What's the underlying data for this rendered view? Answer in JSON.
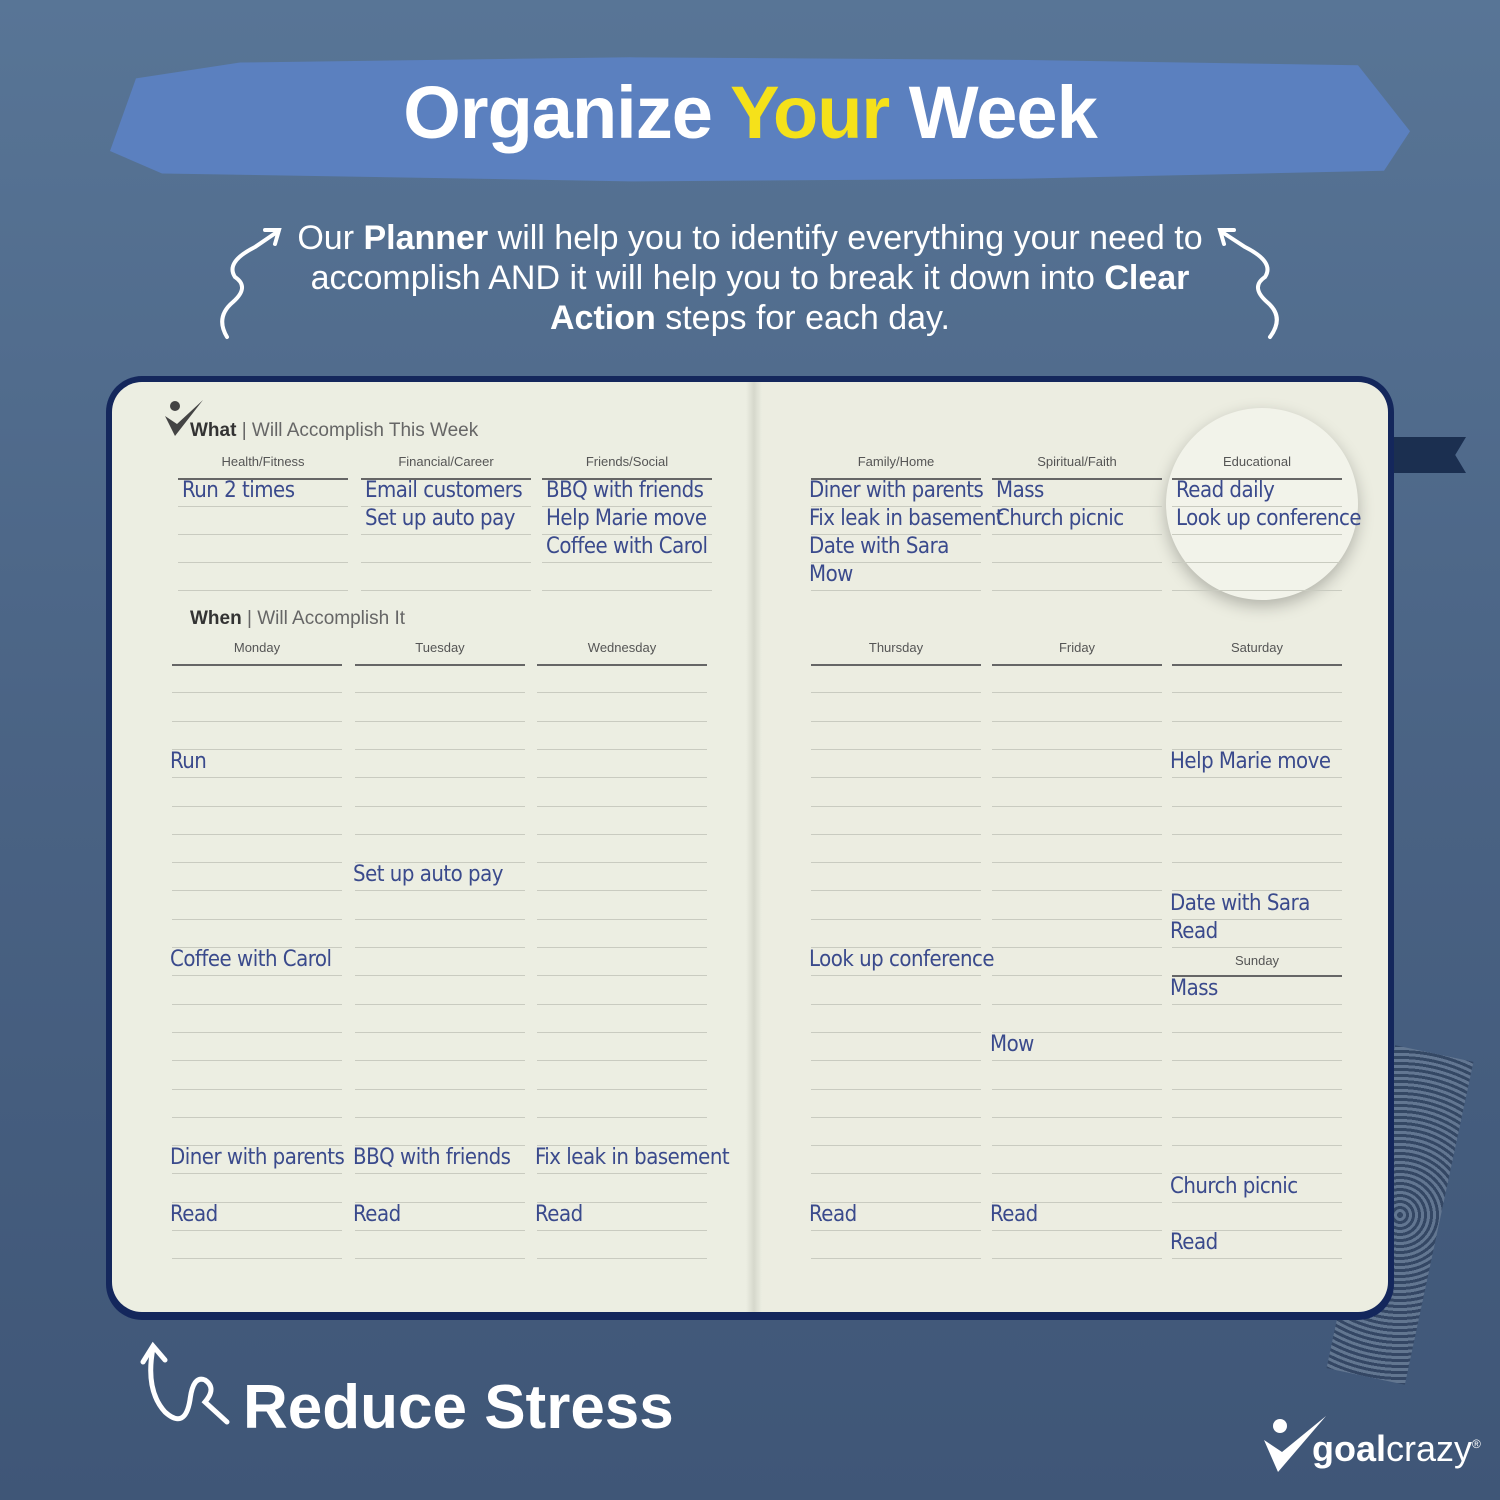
{
  "headline": {
    "part1": "Organize",
    "highlight": "Your",
    "part2": "Week",
    "highlight_color": "#f5e11a",
    "banner_color": "#5b80bf"
  },
  "subtitle": {
    "t1": "Our ",
    "b1": "Planner",
    "t2": " will help you to identify everything your need to accomplish AND it will help you to break it down into ",
    "b2": "Clear Action",
    "t3": " steps for each day."
  },
  "planner": {
    "what_bold": "What",
    "what_rest": " | Will Accomplish This Week",
    "when_bold": "When",
    "when_rest": " | Will Accomplish It",
    "goal_columns": [
      {
        "label": "Health/Fitness",
        "entries": [
          "Run 2 times"
        ]
      },
      {
        "label": "Financial/Career",
        "entries": [
          "Email customers",
          "Set up auto pay"
        ]
      },
      {
        "label": "Friends/Social",
        "entries": [
          "BBQ with friends",
          "Help Marie move",
          "Coffee with Carol"
        ]
      },
      {
        "label": "Family/Home",
        "entries": [
          "Diner with parents",
          "Fix leak in basement",
          "Date with Sara",
          "Mow"
        ]
      },
      {
        "label": "Spiritual/Faith",
        "entries": [
          "Mass",
          "Church picnic"
        ]
      },
      {
        "label": "Educational",
        "entries": [
          "Read daily",
          "Look up conference"
        ]
      }
    ],
    "days": [
      {
        "label": "Monday",
        "entries": [
          "Run",
          "Coffee with Carol",
          "Diner with parents",
          "Read"
        ]
      },
      {
        "label": "Tuesday",
        "entries": [
          "Set up auto pay",
          "BBQ with friends",
          "Read"
        ]
      },
      {
        "label": "Wednesday",
        "entries": [
          "Fix leak in basement",
          "Read"
        ]
      },
      {
        "label": "Thursday",
        "entries": [
          "Look up conference",
          "Read"
        ]
      },
      {
        "label": "Friday",
        "entries": [
          "Mow",
          "Read"
        ]
      },
      {
        "label": "Saturday",
        "entries": [
          "Help Marie move",
          "Date with Sara",
          "Read"
        ]
      },
      {
        "label": "Sunday",
        "entries": [
          "Mass",
          "Church picnic",
          "Read"
        ]
      }
    ]
  },
  "footer": {
    "tagline": "Reduce Stress",
    "brand_bold": "goal",
    "brand_rest": "crazy",
    "brand_mark": "®"
  },
  "icons": [
    "curly-arrow-left-icon",
    "curly-arrow-right-icon",
    "loop-arrow-icon",
    "goalcrazy-logo-icon",
    "checkmark-person-icon"
  ]
}
